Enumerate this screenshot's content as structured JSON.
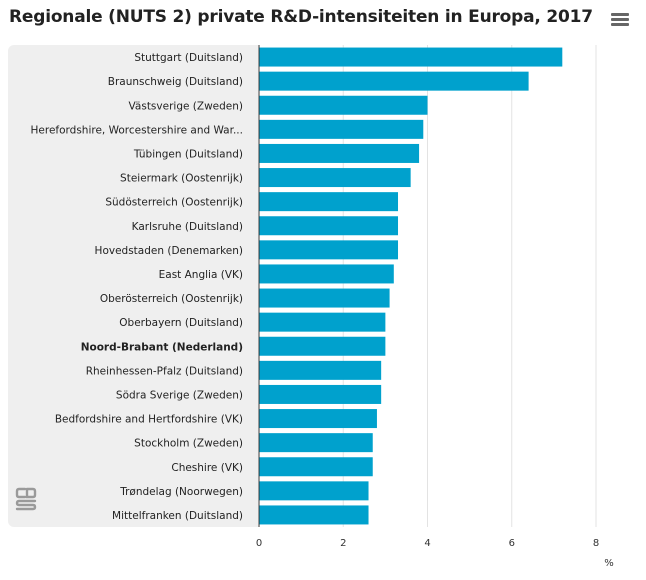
{
  "title": "Regionale (NUTS 2) private R&D-intensiteiten in Europa, 2017",
  "menu_icon": "hamburger-menu-icon",
  "logo_icon": "cbs-logo-icon",
  "chart_data": {
    "type": "bar",
    "orientation": "horizontal",
    "title": "Regionale (NUTS 2) private R&D-intensiteiten in Europa, 2017",
    "xlabel": "%",
    "ylabel": "",
    "xlim": [
      0,
      8
    ],
    "xticks": [
      0,
      2,
      4,
      6,
      8
    ],
    "grid": true,
    "bar_color": "#00a1cd",
    "highlight_category": "Noord-Brabant (Nederland)",
    "categories": [
      "Stuttgart (Duitsland)",
      "Braunschweig (Duitsland)",
      "Västsverige (Zweden)",
      "Herefordshire, Worcestershire and War...",
      "Tübingen (Duitsland)",
      "Steiermark (Oostenrijk)",
      "Südösterreich (Oostenrijk)",
      "Karlsruhe (Duitsland)",
      "Hovedstaden (Denemarken)",
      "East Anglia (VK)",
      "Oberösterreich (Oostenrijk)",
      "Oberbayern (Duitsland)",
      "Noord-Brabant (Nederland)",
      "Rheinhessen-Pfalz (Duitsland)",
      "Södra Sverige (Zweden)",
      "Bedfordshire and Hertfordshire (VK)",
      "Stockholm (Zweden)",
      "Cheshire (VK)",
      "Trøndelag (Noorwegen)",
      "Mittelfranken (Duitsland)"
    ],
    "values": [
      7.2,
      6.4,
      4.0,
      3.9,
      3.8,
      3.6,
      3.3,
      3.3,
      3.3,
      3.2,
      3.1,
      3.0,
      3.0,
      2.9,
      2.9,
      2.8,
      2.7,
      2.7,
      2.6,
      2.6
    ]
  }
}
